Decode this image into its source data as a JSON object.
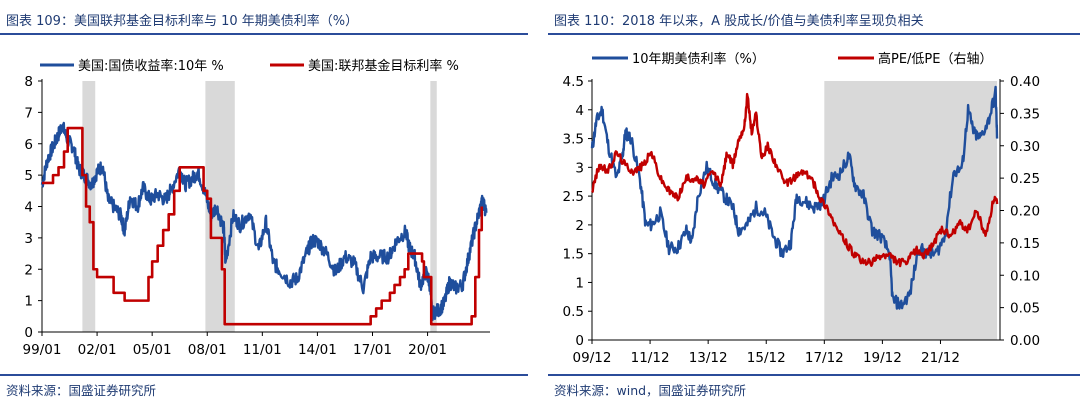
{
  "left_panel": {
    "title": "图表 109：美国联邦基金目标利率与 10 年期美债利率（%）",
    "source": "资料来源：国盛证券研究所"
  },
  "right_panel": {
    "title": "图表 110：2018 年以来，A 股成长/价值与美债利率呈现负相关",
    "source": "资料来源：wind，国盛证券研究所"
  },
  "colors": {
    "blue": "#1f4e9c",
    "red": "#c00000",
    "shade": "#d9d9d9",
    "axis": "#000000"
  },
  "chart_data": [
    {
      "type": "line",
      "title": "美国联邦基金目标利率与 10 年期美债利率（%）",
      "xlabel": "",
      "ylabel": "",
      "x_ticks": [
        "99/01",
        "02/01",
        "05/01",
        "08/01",
        "11/01",
        "14/01",
        "17/01",
        "20/01"
      ],
      "y_ticks": [
        "0",
        "1",
        "2",
        "3",
        "4",
        "5",
        "6",
        "7",
        "8"
      ],
      "xlim": [
        1999.0,
        2023.4
      ],
      "ylim": [
        0,
        8
      ],
      "legend": [
        "美国:国债收益率:10年 %",
        "美国:联邦基金目标利率 %"
      ],
      "legend_position": "top",
      "recessions": [
        [
          2001.2,
          2001.9
        ],
        [
          2007.9,
          2009.5
        ],
        [
          2020.15,
          2020.5
        ]
      ],
      "series": [
        {
          "name": "美国:国债收益率:10年 %",
          "color": "blue",
          "x": [
            1999.0,
            1999.3,
            1999.6,
            1999.9,
            2000.1,
            2000.4,
            2000.7,
            2001.0,
            2001.3,
            2001.7,
            2002.0,
            2002.3,
            2002.6,
            2002.9,
            2003.3,
            2003.5,
            2003.8,
            2004.2,
            2004.5,
            2004.9,
            2005.3,
            2005.7,
            2006.0,
            2006.5,
            2006.8,
            2007.2,
            2007.5,
            2007.9,
            2008.2,
            2008.5,
            2008.9,
            2009.0,
            2009.4,
            2009.8,
            2010.3,
            2010.8,
            2011.2,
            2011.6,
            2011.9,
            2012.5,
            2012.9,
            2013.4,
            2013.7,
            2014.0,
            2014.5,
            2015.0,
            2015.5,
            2016.0,
            2016.5,
            2016.9,
            2017.3,
            2017.9,
            2018.3,
            2018.8,
            2019.0,
            2019.3,
            2019.6,
            2019.9,
            2020.1,
            2020.25,
            2020.6,
            2020.9,
            2021.2,
            2021.5,
            2021.9,
            2022.2,
            2022.5,
            2022.8,
            2023.0,
            2023.2
          ],
          "values": [
            4.7,
            5.5,
            5.9,
            6.3,
            6.6,
            6.1,
            5.9,
            5.2,
            5.0,
            4.7,
            5.1,
            5.3,
            4.2,
            4.0,
            3.7,
            3.2,
            4.3,
            4.0,
            4.6,
            4.2,
            4.4,
            4.2,
            4.5,
            5.2,
            4.7,
            4.9,
            5.1,
            4.4,
            3.7,
            4.0,
            3.3,
            2.2,
            3.7,
            3.4,
            3.8,
            2.6,
            3.5,
            2.2,
            2.0,
            1.6,
            1.7,
            2.5,
            2.9,
            2.9,
            2.5,
            1.9,
            2.4,
            2.2,
            1.4,
            2.4,
            2.4,
            2.4,
            2.9,
            3.2,
            2.7,
            2.4,
            1.5,
            1.9,
            1.6,
            0.6,
            0.7,
            0.9,
            1.6,
            1.4,
            1.5,
            2.3,
            3.1,
            3.8,
            4.2,
            3.8
          ]
        },
        {
          "name": "美国:联邦基金目标利率 %",
          "color": "red",
          "x": [
            1999.0,
            1999.5,
            1999.6,
            1999.9,
            2000.2,
            2000.4,
            2001.0,
            2001.2,
            2001.4,
            2001.6,
            2001.8,
            2002.0,
            2002.9,
            2003.5,
            2004.5,
            2004.8,
            2005.0,
            2005.3,
            2005.6,
            2005.9,
            2006.2,
            2006.5,
            2007.6,
            2007.8,
            2008.0,
            2008.2,
            2008.8,
            2008.95,
            2015.9,
            2016.9,
            2017.2,
            2017.5,
            2017.95,
            2018.2,
            2018.5,
            2018.75,
            2018.95,
            2019.5,
            2019.7,
            2019.8,
            2020.15,
            2020.2,
            2022.2,
            2022.4,
            2022.6,
            2022.8,
            2022.95
          ],
          "values": [
            4.75,
            4.75,
            5.0,
            5.25,
            5.75,
            6.5,
            6.5,
            5.0,
            4.0,
            3.5,
            2.0,
            1.75,
            1.25,
            1.0,
            1.0,
            1.75,
            2.25,
            2.75,
            3.25,
            3.75,
            4.5,
            5.25,
            5.25,
            4.5,
            4.25,
            3.0,
            2.0,
            0.25,
            0.25,
            0.5,
            0.75,
            1.0,
            1.25,
            1.5,
            1.75,
            2.0,
            2.5,
            2.5,
            2.25,
            1.75,
            1.75,
            0.25,
            0.25,
            0.5,
            1.75,
            3.25,
            4.0
          ]
        }
      ]
    },
    {
      "type": "line",
      "title": "2018 年以来，A 股成长/价值与美债利率呈现负相关",
      "xlabel": "",
      "ylabel": "",
      "x_ticks": [
        "09/12",
        "11/12",
        "13/12",
        "15/12",
        "17/12",
        "19/12",
        "21/12"
      ],
      "y_ticks_left": [
        "0",
        "0.5",
        "1",
        "1.5",
        "2",
        "2.5",
        "3",
        "3.5",
        "4",
        "4.5"
      ],
      "y_ticks_right": [
        "0.00",
        "0.05",
        "0.10",
        "0.15",
        "0.20",
        "0.25",
        "0.30",
        "0.35",
        "0.40"
      ],
      "xlim": [
        2009.95,
        2024.0
      ],
      "ylim_left": [
        0,
        4.5
      ],
      "ylim_right": [
        0,
        0.4
      ],
      "legend": [
        "10年期美债利率（%）",
        "高PE/低PE（右轴）"
      ],
      "legend_position": "top",
      "shaded": [
        [
          2017.95,
          2023.9
        ]
      ],
      "series": [
        {
          "name": "10年期美债利率（%）",
          "axis": "left",
          "color": "blue",
          "x": [
            2009.95,
            2010.1,
            2010.3,
            2010.5,
            2010.8,
            2011.0,
            2011.1,
            2011.3,
            2011.6,
            2011.8,
            2012.0,
            2012.3,
            2012.6,
            2012.9,
            2013.2,
            2013.4,
            2013.6,
            2013.9,
            2014.2,
            2014.5,
            2014.8,
            2015.0,
            2015.3,
            2015.6,
            2015.9,
            2016.2,
            2016.5,
            2016.8,
            2017.0,
            2017.3,
            2017.6,
            2017.9,
            2018.2,
            2018.5,
            2018.8,
            2019.0,
            2019.3,
            2019.6,
            2019.9,
            2020.2,
            2020.3,
            2020.6,
            2020.9,
            2021.2,
            2021.5,
            2021.8,
            2022.1,
            2022.4,
            2022.7,
            2022.9,
            2023.1,
            2023.3,
            2023.6,
            2023.85,
            2023.9
          ],
          "values": [
            3.3,
            3.8,
            4.0,
            3.4,
            2.8,
            3.2,
            3.6,
            3.5,
            2.8,
            2.0,
            2.0,
            2.2,
            1.6,
            1.6,
            1.9,
            1.7,
            2.5,
            3.0,
            2.7,
            2.5,
            2.3,
            1.9,
            2.0,
            2.3,
            2.2,
            1.8,
            1.5,
            1.7,
            2.5,
            2.4,
            2.3,
            2.4,
            2.8,
            2.9,
            3.2,
            2.7,
            2.5,
            1.9,
            1.8,
            1.5,
            0.7,
            0.6,
            0.8,
            1.6,
            1.5,
            1.5,
            1.8,
            2.9,
            3.0,
            4.0,
            3.6,
            3.5,
            3.8,
            4.3,
            3.5
          ]
        },
        {
          "name": "高PE/低PE（右轴）",
          "axis": "right",
          "color": "red",
          "x": [
            2009.95,
            2010.2,
            2010.5,
            2010.8,
            2011.1,
            2011.4,
            2011.7,
            2012.0,
            2012.3,
            2012.6,
            2012.9,
            2013.2,
            2013.5,
            2013.8,
            2014.1,
            2014.4,
            2014.6,
            2014.8,
            2015.0,
            2015.2,
            2015.3,
            2015.45,
            2015.6,
            2015.8,
            2016.0,
            2016.3,
            2016.6,
            2016.9,
            2017.2,
            2017.5,
            2017.8,
            2018.1,
            2018.4,
            2018.7,
            2019.0,
            2019.3,
            2019.6,
            2019.9,
            2020.2,
            2020.5,
            2020.8,
            2021.1,
            2021.4,
            2021.7,
            2022.0,
            2022.3,
            2022.6,
            2022.9,
            2023.2,
            2023.5,
            2023.8,
            2023.9
          ],
          "values": [
            0.23,
            0.27,
            0.26,
            0.29,
            0.27,
            0.26,
            0.27,
            0.29,
            0.25,
            0.23,
            0.22,
            0.25,
            0.25,
            0.24,
            0.26,
            0.24,
            0.29,
            0.27,
            0.31,
            0.33,
            0.38,
            0.32,
            0.35,
            0.28,
            0.3,
            0.27,
            0.24,
            0.25,
            0.26,
            0.25,
            0.22,
            0.2,
            0.17,
            0.15,
            0.13,
            0.12,
            0.12,
            0.13,
            0.13,
            0.12,
            0.12,
            0.14,
            0.13,
            0.15,
            0.17,
            0.16,
            0.18,
            0.17,
            0.2,
            0.16,
            0.22,
            0.21
          ]
        }
      ]
    }
  ]
}
